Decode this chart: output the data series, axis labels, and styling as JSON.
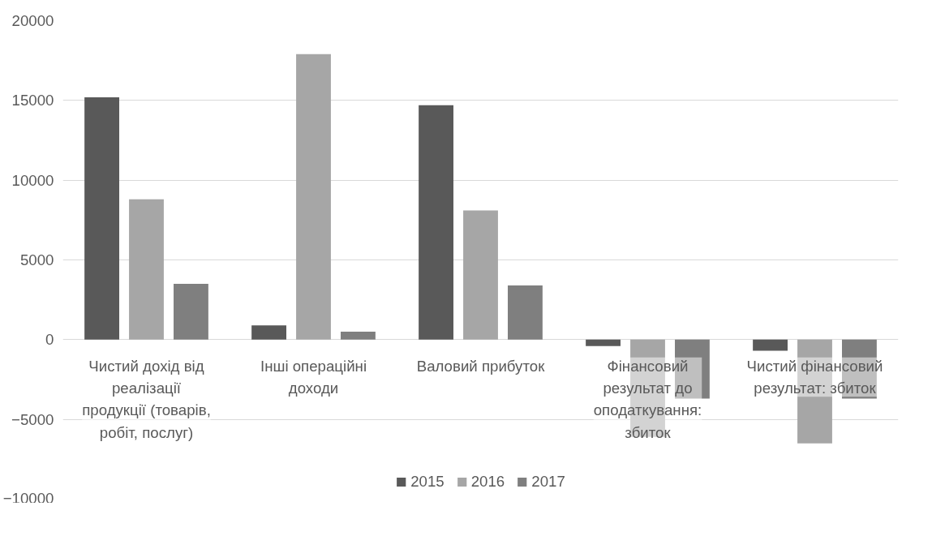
{
  "chart_data": {
    "type": "bar",
    "categories": [
      "Чистий дохід від реалізації продукції (товарів, робіт, послуг)",
      "Інші операційні доходи",
      "Валовий прибуток",
      "Фінансовий результат до оподаткування: збиток",
      "Чистий фінансовий результат: збиток"
    ],
    "series": [
      {
        "name": "2015",
        "color": "#595959",
        "values": [
          15200,
          900,
          14700,
          -400,
          -700
        ]
      },
      {
        "name": "2016",
        "color": "#a6a6a6",
        "values": [
          8800,
          17900,
          8100,
          -6100,
          -6500
        ]
      },
      {
        "name": "2017",
        "color": "#7f7f7f",
        "values": [
          3500,
          500,
          3400,
          -3700,
          -3700
        ]
      }
    ],
    "ylim": [
      -10000,
      20000
    ],
    "yticks": [
      -10000,
      -5000,
      0,
      5000,
      10000,
      15000,
      20000
    ],
    "grid": "y",
    "legend": "bottom"
  }
}
